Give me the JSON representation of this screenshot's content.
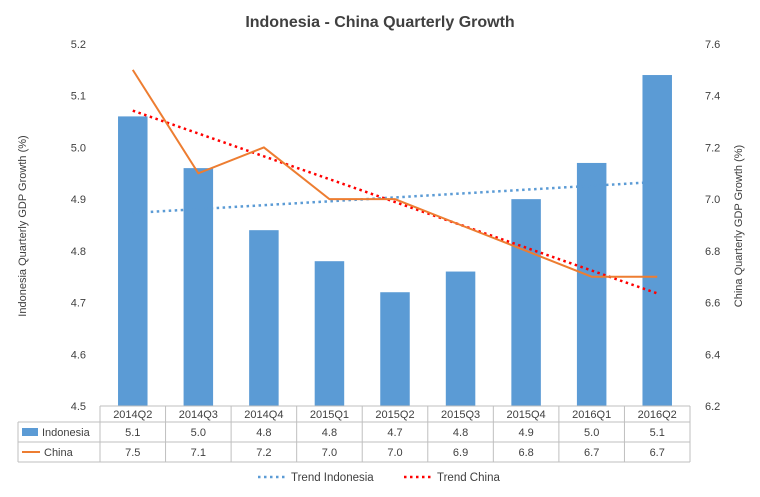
{
  "chart_data": {
    "type": "bar",
    "title": "Indonesia - China Quarterly Growth",
    "categories": [
      "2014Q2",
      "2014Q3",
      "2014Q4",
      "2015Q1",
      "2015Q2",
      "2015Q3",
      "2015Q4",
      "2016Q1",
      "2016Q2"
    ],
    "series": [
      {
        "name": "Indonesia",
        "type": "bar",
        "axis": "left",
        "color": "#5B9BD5",
        "values": [
          5.06,
          4.96,
          4.84,
          4.78,
          4.72,
          4.76,
          4.9,
          4.97,
          5.14
        ],
        "table_labels": [
          "5.1",
          "5.0",
          "4.8",
          "4.8",
          "4.7",
          "4.8",
          "4.9",
          "5.0",
          "5.1"
        ]
      },
      {
        "name": "China",
        "type": "line",
        "axis": "right",
        "color": "#ED7D31",
        "values": [
          7.5,
          7.1,
          7.2,
          7.0,
          7.0,
          6.9,
          6.8,
          6.7,
          6.7
        ],
        "table_labels": [
          "7.5",
          "7.1",
          "7.2",
          "7.0",
          "7.0",
          "6.9",
          "6.8",
          "6.7",
          "6.7"
        ]
      }
    ],
    "trendlines": [
      {
        "name": "Trend Indonesia",
        "series": "Indonesia",
        "style": "dotted",
        "color": "#5B9BD5"
      },
      {
        "name": "Trend China",
        "series": "China",
        "style": "dotted",
        "color": "#FF0000"
      }
    ],
    "ylabel": "Indonesia Quarterly GDP Growth (%)",
    "y2label": "China Quarterly GDP Growth (%)",
    "ylim": [
      4.5,
      5.2
    ],
    "y2lim": [
      6.2,
      7.6
    ],
    "yticks": [
      "4.5",
      "4.6",
      "4.7",
      "4.8",
      "4.9",
      "5.0",
      "5.1",
      "5.2"
    ],
    "y2ticks": [
      "6.2",
      "6.4",
      "6.6",
      "6.8",
      "7.0",
      "7.2",
      "7.4",
      "7.6"
    ],
    "grid": false,
    "legend_position": "bottom",
    "data_table": true
  }
}
